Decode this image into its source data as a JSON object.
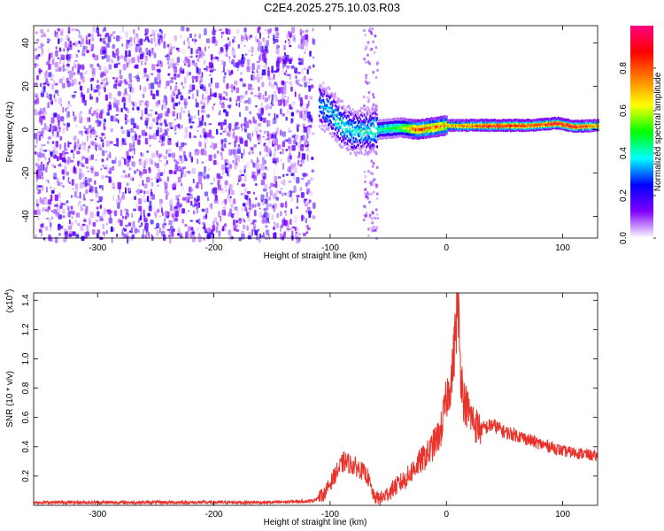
{
  "figure": {
    "title": "C2E4.2025.275.10.03.R03"
  },
  "chart_data": [
    {
      "type": "heatmap",
      "xlabel": "Height of straight line (km)",
      "ylabel": "Frequency (Hz)",
      "xlim": [
        -355,
        130
      ],
      "ylim": [
        -50,
        48
      ],
      "x_ticks": [
        -300,
        -200,
        -100,
        0,
        100
      ],
      "y_ticks": [
        -40,
        -20,
        0,
        20,
        40
      ],
      "colorbar": {
        "label": "Normalized spectral amplitude",
        "range": [
          0,
          1
        ],
        "ticks": [
          0.0,
          0.2,
          0.4,
          0.6,
          0.8
        ],
        "colormap": [
          "#ffffff",
          "#8000ff",
          "#0000ff",
          "#00ffff",
          "#00ff00",
          "#ffff00",
          "#ff8000",
          "#ff0000",
          "#ff0080"
        ]
      },
      "noise_region": {
        "x_range": [
          -355,
          -115
        ],
        "level": 0.12
      },
      "signal_track": [
        {
          "x": -110,
          "y": 12,
          "value": 0.35
        },
        {
          "x": -100,
          "y": 8,
          "value": 0.4
        },
        {
          "x": -90,
          "y": 2,
          "value": 0.42
        },
        {
          "x": -80,
          "y": -1,
          "value": 0.4
        },
        {
          "x": -60,
          "y": 0,
          "value": 0.45
        },
        {
          "x": -40,
          "y": 1,
          "value": 0.55
        },
        {
          "x": -25,
          "y": 0,
          "value": 0.85
        },
        {
          "x": 0,
          "y": 2,
          "value": 0.75
        },
        {
          "x": 40,
          "y": 2,
          "value": 0.95
        },
        {
          "x": 70,
          "y": 2,
          "value": 0.9
        },
        {
          "x": 95,
          "y": 3,
          "value": 0.95
        },
        {
          "x": 110,
          "y": 1.5,
          "value": 0.95
        },
        {
          "x": 130,
          "y": 2,
          "value": 0.8
        }
      ]
    },
    {
      "type": "line",
      "xlabel": "Height of straight line (km)",
      "ylabel": "SNR (10 * v/v)",
      "y_multiplier": "(x10",
      "y_multiplier_exp": "4",
      "xlim": [
        -355,
        130
      ],
      "ylim": [
        0,
        1.45
      ],
      "x_ticks": [
        -300,
        -200,
        -100,
        0,
        100
      ],
      "y_ticks": [
        0.2,
        0.4,
        0.6,
        0.8,
        1.0,
        1.2,
        1.4
      ],
      "series": [
        {
          "color": "#e8322a",
          "x": [
            -355,
            -150,
            -115,
            -105,
            -95,
            -88,
            -82,
            -75,
            -68,
            -62,
            -55,
            -45,
            -35,
            -25,
            -15,
            -5,
            0,
            5,
            8,
            10,
            12,
            15,
            20,
            25,
            30,
            40,
            50,
            60,
            70,
            80,
            90,
            100,
            110,
            120,
            130
          ],
          "y": [
            0.02,
            0.02,
            0.03,
            0.08,
            0.22,
            0.3,
            0.28,
            0.25,
            0.2,
            0.05,
            0.05,
            0.12,
            0.18,
            0.28,
            0.36,
            0.5,
            0.72,
            0.9,
            1.2,
            1.42,
            0.95,
            0.72,
            0.62,
            0.55,
            0.52,
            0.55,
            0.5,
            0.48,
            0.45,
            0.42,
            0.4,
            0.37,
            0.36,
            0.35,
            0.33
          ]
        }
      ]
    }
  ]
}
